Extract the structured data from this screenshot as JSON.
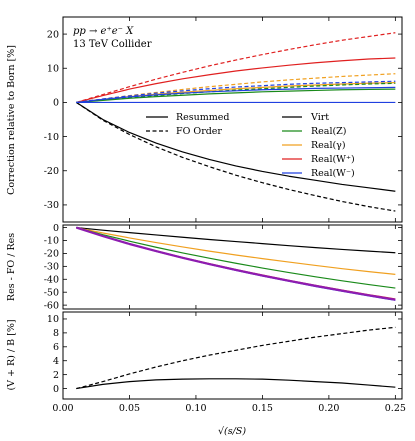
{
  "chart_data": [
    {
      "type": "line",
      "panel": "top",
      "ylabel": "Correction relative to Born [%]",
      "annotations": [
        "pp → e⁺e⁻ X",
        "13 TeV Collider"
      ],
      "xlim": [
        0.0,
        0.255
      ],
      "ylim": [
        -35,
        25
      ],
      "xticks": [
        0.0,
        0.05,
        0.1,
        0.15,
        0.2,
        0.25
      ],
      "yticks": [
        -30,
        -20,
        -10,
        0,
        10,
        20
      ],
      "legend_style": [
        {
          "label": "Resummed",
          "dash": "solid"
        },
        {
          "label": "FO Order",
          "dash": "dashed"
        }
      ],
      "legend_color": [
        {
          "label": "Virt",
          "color": "#000000"
        },
        {
          "label": "Real(Z)",
          "color": "#1a8a1a"
        },
        {
          "label": "Real(γ)",
          "color": "#f0a020"
        },
        {
          "label": "Real(W⁺)",
          "color": "#e02020"
        },
        {
          "label": "Real(W⁻)",
          "color": "#2040e0"
        }
      ],
      "x": [
        0.01,
        0.03,
        0.05,
        0.07,
        0.09,
        0.11,
        0.13,
        0.15,
        0.17,
        0.19,
        0.21,
        0.23,
        0.25
      ],
      "series": [
        {
          "name": "Virt",
          "dash": "solid",
          "color": "#000000",
          "values": [
            0,
            -5.0,
            -8.8,
            -11.9,
            -14.5,
            -16.7,
            -18.6,
            -20.2,
            -21.6,
            -22.8,
            -24.0,
            -25.0,
            -26.0
          ]
        },
        {
          "name": "Virt",
          "dash": "dashed",
          "color": "#000000",
          "values": [
            0,
            -5.2,
            -9.4,
            -13.0,
            -16.1,
            -18.8,
            -21.3,
            -23.5,
            -25.5,
            -27.3,
            -29.0,
            -30.5,
            -31.8
          ]
        },
        {
          "name": "Real(W⁺)",
          "dash": "solid",
          "color": "#e02020",
          "values": [
            0,
            2.0,
            3.9,
            5.5,
            6.9,
            8.1,
            9.2,
            10.1,
            10.9,
            11.6,
            12.2,
            12.7,
            13.0
          ]
        },
        {
          "name": "Real(W⁺)",
          "dash": "dashed",
          "color": "#e02020",
          "values": [
            0,
            2.3,
            4.6,
            6.8,
            8.8,
            10.7,
            12.4,
            14.0,
            15.5,
            16.9,
            18.2,
            19.3,
            20.4
          ]
        },
        {
          "name": "Real(γ)",
          "dash": "solid",
          "color": "#f0a020",
          "values": [
            0,
            0.9,
            1.7,
            2.4,
            3.0,
            3.5,
            4.0,
            4.4,
            4.8,
            5.1,
            5.4,
            5.6,
            5.8
          ]
        },
        {
          "name": "Real(γ)",
          "dash": "dashed",
          "color": "#f0a020",
          "values": [
            0,
            1.0,
            2.0,
            2.9,
            3.8,
            4.6,
            5.3,
            6.0,
            6.6,
            7.1,
            7.6,
            8.0,
            8.4
          ]
        },
        {
          "name": "Real(Z)",
          "dash": "solid",
          "color": "#1a8a1a",
          "values": [
            0,
            0.6,
            1.2,
            1.7,
            2.1,
            2.5,
            2.8,
            3.1,
            3.3,
            3.5,
            3.7,
            3.8,
            3.9
          ]
        },
        {
          "name": "Real(Z)",
          "dash": "dashed",
          "color": "#1a8a1a",
          "values": [
            0,
            0.7,
            1.4,
            2.0,
            2.6,
            3.1,
            3.6,
            4.0,
            4.4,
            4.8,
            5.1,
            5.4,
            5.6
          ]
        },
        {
          "name": "Real(W⁻)",
          "dash": "solid",
          "color": "#2040e0",
          "values": [
            0,
            0.9,
            1.6,
            2.2,
            2.7,
            3.1,
            3.4,
            3.7,
            3.9,
            4.1,
            4.2,
            4.3,
            4.4
          ]
        },
        {
          "name": "Real(W⁻)",
          "dash": "dashed",
          "color": "#2040e0",
          "values": [
            0,
            1.0,
            1.9,
            2.7,
            3.4,
            4.0,
            4.5,
            4.9,
            5.3,
            5.6,
            5.8,
            6.0,
            6.2
          ]
        },
        {
          "name": "Born",
          "dash": "solid",
          "color": "#2040e0",
          "values": [
            0,
            0,
            0,
            0,
            0,
            0,
            0,
            0,
            0,
            0,
            0,
            0,
            0
          ]
        }
      ]
    },
    {
      "type": "line",
      "panel": "middle",
      "ylabel": "Res - FO / Res",
      "xlim": [
        0.0,
        0.255
      ],
      "ylim": [
        -63,
        2
      ],
      "xticks": [
        0.0,
        0.05,
        0.1,
        0.15,
        0.2,
        0.25
      ],
      "yticks": [
        0,
        -10,
        -20,
        -30,
        -40,
        -50,
        -60
      ],
      "x": [
        0.01,
        0.03,
        0.05,
        0.07,
        0.09,
        0.11,
        0.13,
        0.15,
        0.17,
        0.19,
        0.21,
        0.23,
        0.25
      ],
      "series": [
        {
          "name": "Virt",
          "color": "#000000",
          "width": 1.2,
          "values": [
            0,
            -2.0,
            -3.9,
            -5.7,
            -7.5,
            -9.2,
            -10.8,
            -12.4,
            -14.0,
            -15.5,
            -16.9,
            -18.2,
            -19.5
          ]
        },
        {
          "name": "Real(γ)",
          "color": "#f0a020",
          "width": 1.2,
          "values": [
            0,
            -4.2,
            -8.0,
            -11.6,
            -15.0,
            -18.2,
            -21.2,
            -24.0,
            -26.7,
            -29.3,
            -31.8,
            -34.1,
            -36.2
          ]
        },
        {
          "name": "Real(Z)",
          "color": "#1a8a1a",
          "width": 1.2,
          "values": [
            0,
            -5.5,
            -10.5,
            -15.2,
            -19.6,
            -23.7,
            -27.6,
            -31.3,
            -34.8,
            -38.1,
            -41.2,
            -44.1,
            -46.8
          ]
        },
        {
          "name": "Real(W⁺)",
          "color": "#e02020",
          "width": 1.2,
          "values": [
            0,
            -6.5,
            -12.5,
            -18.0,
            -23.1,
            -27.9,
            -32.4,
            -36.7,
            -40.8,
            -44.7,
            -48.4,
            -51.9,
            -55.2
          ]
        },
        {
          "name": "Real(W⁻)",
          "color": "#2040e0",
          "width": 1.2,
          "values": [
            0,
            -6.7,
            -12.8,
            -18.4,
            -23.6,
            -28.5,
            -33.1,
            -37.5,
            -41.6,
            -45.6,
            -49.3,
            -52.9,
            -56.3
          ]
        },
        {
          "name": "Real(W⁺) + Real(W⁻)",
          "color": "#8e1cb0",
          "width": 2.2,
          "values": [
            0,
            -6.6,
            -12.7,
            -18.2,
            -23.4,
            -28.2,
            -32.8,
            -37.1,
            -41.2,
            -45.1,
            -48.8,
            -52.4,
            -55.8
          ]
        }
      ]
    },
    {
      "type": "line",
      "panel": "bottom",
      "ylabel": "(V + R) / B [%]",
      "xlabel": "√(s/S)",
      "xlim": [
        0.0,
        0.255
      ],
      "ylim": [
        -1.5,
        11
      ],
      "xticks": [
        0.0,
        0.05,
        0.1,
        0.15,
        0.2,
        0.25
      ],
      "xticklabels": [
        "0.00",
        "0.05",
        "0.10",
        "0.15",
        "0.20",
        "0.25"
      ],
      "yticks": [
        0,
        2,
        4,
        6,
        8,
        10
      ],
      "x": [
        0.01,
        0.03,
        0.05,
        0.07,
        0.09,
        0.11,
        0.13,
        0.15,
        0.17,
        0.19,
        0.21,
        0.23,
        0.25
      ],
      "series": [
        {
          "name": "Resummed",
          "dash": "solid",
          "color": "#000000",
          "values": [
            0,
            0.6,
            1.0,
            1.25,
            1.35,
            1.4,
            1.4,
            1.35,
            1.2,
            1.0,
            0.8,
            0.5,
            0.2
          ]
        },
        {
          "name": "FO Order",
          "dash": "dashed",
          "color": "#000000",
          "values": [
            0,
            1.0,
            2.1,
            3.1,
            4.0,
            4.8,
            5.5,
            6.2,
            6.8,
            7.4,
            7.9,
            8.4,
            8.8
          ]
        }
      ]
    }
  ]
}
